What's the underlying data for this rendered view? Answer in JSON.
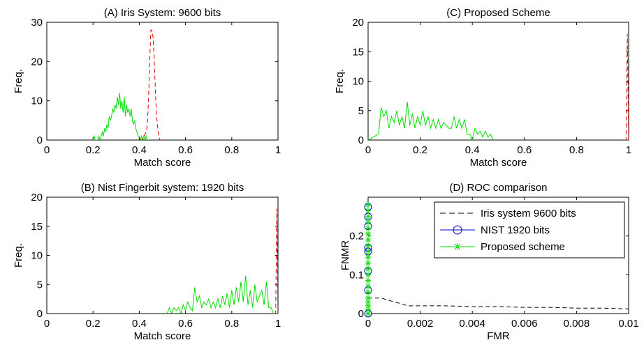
{
  "chart_data": [
    {
      "id": "A",
      "type": "line",
      "title": "(A) Iris System: 9600 bits",
      "xlabel": "Match score",
      "ylabel": "Freq.",
      "xlim": [
        0,
        1
      ],
      "ylim": [
        0,
        30
      ],
      "xticks": [
        "0",
        "0.2",
        "0.4",
        "0.6",
        "0.8",
        "1"
      ],
      "yticks": [
        "0",
        "10",
        "20",
        "30"
      ],
      "grid": false,
      "series": [
        {
          "color": "#00dd00",
          "dash": "solid",
          "x": [
            0.2,
            0.205,
            0.21,
            0.215,
            0.22,
            0.225,
            0.23,
            0.235,
            0.24,
            0.245,
            0.25,
            0.255,
            0.26,
            0.265,
            0.27,
            0.275,
            0.28,
            0.285,
            0.29,
            0.295,
            0.3,
            0.305,
            0.31,
            0.315,
            0.32,
            0.325,
            0.33,
            0.335,
            0.34,
            0.345,
            0.35,
            0.355,
            0.36,
            0.365,
            0.37,
            0.375,
            0.38,
            0.385,
            0.39,
            0.395,
            0.4,
            0.405,
            0.41,
            0.415,
            0.42,
            0.425,
            0.43,
            0.435,
            0.44
          ],
          "y": [
            0,
            1,
            0,
            0,
            0,
            1,
            0,
            1,
            2,
            1,
            3,
            2,
            4,
            3,
            6,
            5,
            6,
            8,
            7,
            9,
            8,
            11,
            9,
            12,
            8,
            10,
            7,
            11,
            6,
            9,
            7,
            8,
            6,
            8,
            5,
            4,
            5,
            3,
            2,
            1,
            1,
            0,
            1,
            0,
            1,
            0,
            1,
            0,
            0
          ]
        },
        {
          "color": "#dd0000",
          "dash": "dashed",
          "x": [
            0.4,
            0.41,
            0.42,
            0.43,
            0.435,
            0.44,
            0.445,
            0.45,
            0.455,
            0.46,
            0.465,
            0.47,
            0.475,
            0.48,
            0.485,
            0.49,
            0.495,
            0.5
          ],
          "y": [
            0,
            0,
            1,
            2,
            4,
            10,
            20,
            28,
            28,
            26,
            20,
            12,
            6,
            3,
            1,
            0,
            0,
            0
          ]
        }
      ]
    },
    {
      "id": "C",
      "type": "line",
      "title": "(C) Proposed Scheme",
      "xlabel": "Match score",
      "ylabel": "Freq.",
      "xlim": [
        0,
        1
      ],
      "ylim": [
        0,
        20
      ],
      "xticks": [
        "0",
        "0.2",
        "0.4",
        "0.6",
        "0.8",
        "1"
      ],
      "yticks": [
        "0",
        "5",
        "10",
        "15",
        "20"
      ],
      "grid": false,
      "series": [
        {
          "color": "#00dd00",
          "dash": "solid",
          "x": [
            0.0,
            0.04,
            0.05,
            0.06,
            0.07,
            0.08,
            0.09,
            0.1,
            0.11,
            0.12,
            0.13,
            0.14,
            0.15,
            0.16,
            0.17,
            0.18,
            0.19,
            0.2,
            0.21,
            0.22,
            0.23,
            0.24,
            0.25,
            0.26,
            0.27,
            0.28,
            0.29,
            0.3,
            0.31,
            0.32,
            0.33,
            0.34,
            0.35,
            0.36,
            0.37,
            0.38,
            0.39,
            0.4,
            0.41,
            0.42,
            0.43,
            0.44,
            0.45,
            0.46,
            0.47,
            0.48
          ],
          "y": [
            0,
            1,
            5.5,
            4,
            5,
            2,
            4,
            3,
            5,
            2.5,
            4,
            2,
            6.5,
            2.5,
            4.5,
            2,
            4,
            2.5,
            5,
            2.5,
            4,
            2,
            3.5,
            2,
            3.5,
            2,
            3,
            2.5,
            2,
            2,
            4,
            2,
            3.5,
            2,
            3.5,
            1,
            1,
            0,
            2,
            1,
            1.5,
            0.5,
            1.5,
            0.5,
            1,
            0
          ]
        },
        {
          "color": "#dd0000",
          "dash": "dashed",
          "x": [
            0.985,
            0.99,
            0.995,
            1.0
          ],
          "y": [
            0,
            0,
            18,
            0
          ]
        }
      ]
    },
    {
      "id": "B",
      "type": "line",
      "title": "(B) Nist Fingerbit system: 1920 bits",
      "xlabel": "Match score",
      "ylabel": "Freq.",
      "xlim": [
        0,
        1
      ],
      "ylim": [
        0,
        20
      ],
      "xticks": [
        "0",
        "0.2",
        "0.4",
        "0.6",
        "0.8",
        "1"
      ],
      "yticks": [
        "0",
        "5",
        "10",
        "15",
        "20"
      ],
      "grid": false,
      "series": [
        {
          "color": "#00dd00",
          "dash": "solid",
          "x": [
            0.52,
            0.53,
            0.54,
            0.55,
            0.56,
            0.57,
            0.58,
            0.59,
            0.6,
            0.61,
            0.62,
            0.63,
            0.64,
            0.65,
            0.66,
            0.67,
            0.68,
            0.69,
            0.7,
            0.71,
            0.72,
            0.73,
            0.74,
            0.75,
            0.76,
            0.77,
            0.78,
            0.79,
            0.8,
            0.81,
            0.82,
            0.83,
            0.84,
            0.85,
            0.86,
            0.87,
            0.88,
            0.89,
            0.9,
            0.91,
            0.92,
            0.93,
            0.94,
            0.95,
            0.96,
            0.97,
            0.98
          ],
          "y": [
            0,
            1,
            0,
            1,
            0.5,
            1,
            0,
            1.5,
            0.5,
            2,
            1,
            0.5,
            4.5,
            2,
            3,
            1,
            2,
            1.5,
            2.5,
            1,
            2,
            1,
            2.5,
            1,
            3,
            1.5,
            3.5,
            1,
            4,
            1.5,
            4.5,
            2,
            5.5,
            2,
            6.5,
            1.5,
            4,
            1,
            5,
            2,
            3,
            4,
            1.5,
            5.5,
            1,
            1,
            0
          ]
        },
        {
          "color": "#dd0000",
          "dash": "dashed",
          "x": [
            0.985,
            0.99,
            0.995,
            1.0
          ],
          "y": [
            0,
            0,
            18,
            0
          ]
        }
      ]
    },
    {
      "id": "D",
      "type": "line",
      "title": "(D) ROC comparison",
      "xlabel": "FMR",
      "ylabel": "FNMR",
      "xlim": [
        0,
        0.01
      ],
      "ylim": [
        0,
        0.3
      ],
      "xticks": [
        "0",
        "0.002",
        "0.004",
        "0.006",
        "0.008",
        "0.01"
      ],
      "yticks": [
        "0",
        "0.1",
        "0.2"
      ],
      "grid": false,
      "legend": "top-right",
      "series": [
        {
          "name": "Iris system 9600 bits",
          "color": "#000000",
          "dash": "dashed",
          "marker": "none",
          "x": [
            0,
            0.0005,
            0.001,
            0.0013,
            0.0015,
            0.002,
            0.003,
            0.004,
            0.005,
            0.006,
            0.007,
            0.008,
            0.009,
            0.01
          ],
          "y": [
            0.04,
            0.04,
            0.03,
            0.025,
            0.02,
            0.02,
            0.02,
            0.018,
            0.018,
            0.016,
            0.016,
            0.014,
            0.014,
            0.012
          ]
        },
        {
          "name": "NIST 1920 bits",
          "color": "#0000dd",
          "dash": "solid",
          "marker": "circle",
          "x": [
            0,
            0,
            0,
            0,
            0,
            0,
            0,
            0
          ],
          "y": [
            0.275,
            0.25,
            0.225,
            0.17,
            0.16,
            0.11,
            0.06,
            0
          ]
        },
        {
          "name": "Proposed scheme",
          "color": "#00dd00",
          "dash": "solid",
          "marker": "star",
          "x": [
            0,
            0,
            0,
            0,
            0,
            0,
            0,
            0,
            0,
            0,
            0,
            0,
            0,
            0,
            0,
            0,
            0,
            0,
            0,
            0,
            0
          ],
          "y": [
            0.28,
            0.265,
            0.25,
            0.235,
            0.22,
            0.205,
            0.19,
            0.175,
            0.16,
            0.145,
            0.13,
            0.115,
            0.1,
            0.085,
            0.07,
            0.055,
            0.04,
            0.03,
            0.02,
            0.01,
            0
          ]
        }
      ]
    }
  ]
}
